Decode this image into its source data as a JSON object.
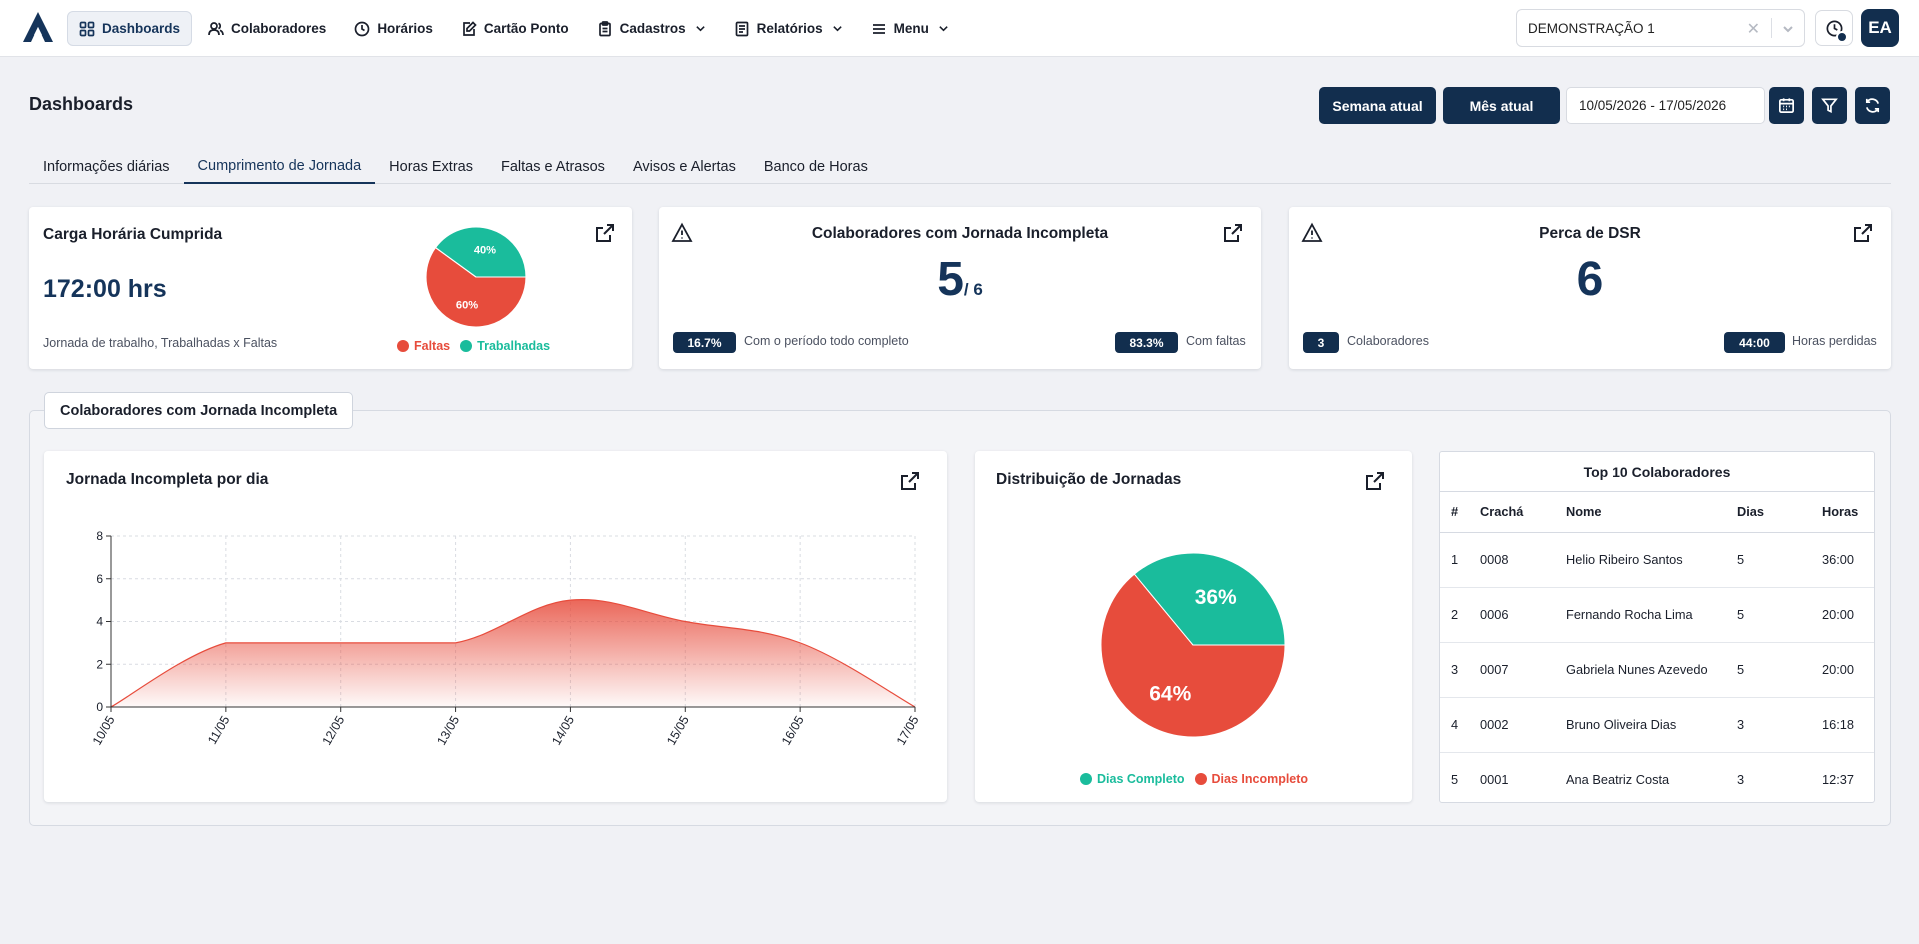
{
  "nav": {
    "items": [
      {
        "label": "Dashboards",
        "icon": "grid-icon",
        "active": true
      },
      {
        "label": "Colaboradores",
        "icon": "users-icon"
      },
      {
        "label": "Horários",
        "icon": "clock-icon"
      },
      {
        "label": "Cartão Ponto",
        "icon": "edit-card-icon"
      },
      {
        "label": "Cadastros",
        "icon": "clipboard-icon",
        "dropdown": true
      },
      {
        "label": "Relatórios",
        "icon": "report-icon",
        "dropdown": true
      },
      {
        "label": "Menu",
        "icon": "menu-icon",
        "dropdown": true
      }
    ],
    "company": "DEMONSTRAÇÃO 1",
    "avatar": "EA"
  },
  "page": {
    "title": "Dashboards",
    "btn_week": "Semana atual",
    "btn_month": "Mês atual",
    "date_range": "10/05/2026 - 17/05/2026"
  },
  "tabs": [
    "Informações diárias",
    "Cumprimento de Jornada",
    "Horas Extras",
    "Faltas e Atrasos",
    "Avisos e Alertas",
    "Banco de Horas"
  ],
  "active_tab": 1,
  "colors": {
    "primary": "#122e4e",
    "red": "#e74c3c",
    "teal": "#1abc9c"
  },
  "card1": {
    "title": "Carga Horária Cumprida",
    "value": "172:00 hrs",
    "subtitle": "Jornada de trabalho, Trabalhadas x Faltas",
    "pie": [
      {
        "label": "Faltas",
        "value": 60,
        "text": "60%"
      },
      {
        "label": "Trabalhadas",
        "value": 40,
        "text": "40%"
      }
    ]
  },
  "card2": {
    "title": "Colaboradores com Jornada Incompleta",
    "value": "5",
    "total": "/ 6",
    "left_pill": "16.7%",
    "left_text": "Com o período todo completo",
    "right_pill": "83.3%",
    "right_text": "Com faltas"
  },
  "card3": {
    "title": "Perca de DSR",
    "value": "6",
    "left_pill": "3",
    "left_text": "Colaboradores",
    "right_pill": "44:00",
    "right_text": "Horas perdidas"
  },
  "section": {
    "title": "Colaboradores com Jornada Incompleta"
  },
  "chart_data": [
    {
      "type": "area",
      "title": "Jornada Incompleta por dia",
      "x": [
        "10/05",
        "11/05",
        "12/05",
        "13/05",
        "14/05",
        "15/05",
        "16/05",
        "17/05"
      ],
      "values": [
        0,
        3,
        3,
        3,
        5,
        4,
        3,
        0
      ],
      "ylim": [
        0,
        8
      ],
      "yticks": [
        "0",
        "2",
        "4",
        "6",
        "8"
      ],
      "grid": true
    },
    {
      "type": "pie",
      "title": "Distribuição de Jornadas",
      "slices": [
        {
          "label": "Dias Completo",
          "value": 36,
          "text": "36%"
        },
        {
          "label": "Dias Incompleto",
          "value": 64,
          "text": "64%"
        }
      ],
      "legend": "bottom"
    }
  ],
  "top10": {
    "title": "Top 10 Colaboradores",
    "columns": [
      "#",
      "Crachá",
      "Nome",
      "Dias",
      "Horas"
    ],
    "rows": [
      [
        "1",
        "0008",
        "Helio Ribeiro Santos",
        "5",
        "36:00"
      ],
      [
        "2",
        "0006",
        "Fernando Rocha Lima",
        "5",
        "20:00"
      ],
      [
        "3",
        "0007",
        "Gabriela Nunes Azevedo",
        "5",
        "20:00"
      ],
      [
        "4",
        "0002",
        "Bruno Oliveira Dias",
        "3",
        "16:18"
      ],
      [
        "5",
        "0001",
        "Ana Beatriz Costa",
        "3",
        "12:37"
      ]
    ]
  }
}
